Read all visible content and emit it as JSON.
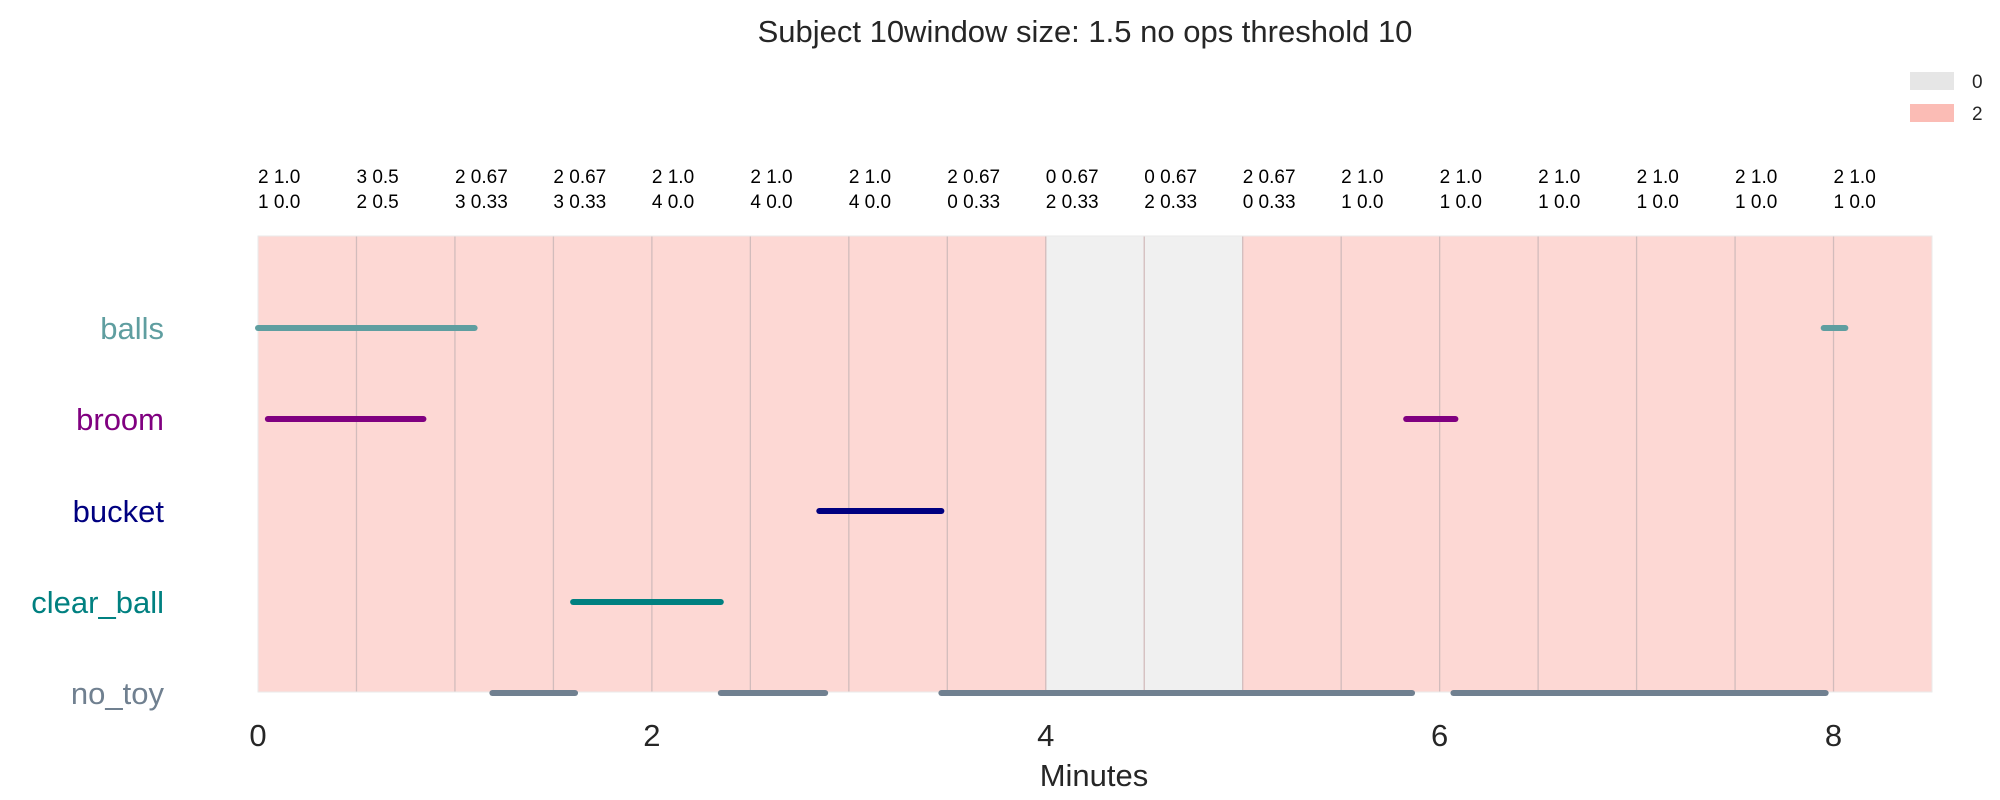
{
  "chart_data": {
    "type": "timeline",
    "title": "Subject 10window size: 1.5 no ops threshold 10",
    "xlabel": "Minutes",
    "xlim": [
      0,
      8.5
    ],
    "xticks": [
      0,
      2,
      4,
      6,
      8
    ],
    "grid": false,
    "legend": {
      "placement": "top-right",
      "entries": [
        {
          "label": "0",
          "color": "#e6e6e6"
        },
        {
          "label": "2",
          "color": "#fbbcb5"
        }
      ]
    },
    "windows": [
      {
        "start": 0.0,
        "end": 0.5,
        "state": "2",
        "label": [
          "2 1.0",
          "1 0.0"
        ]
      },
      {
        "start": 0.5,
        "end": 1.0,
        "state": "2",
        "label": [
          "3 0.5",
          "2 0.5"
        ]
      },
      {
        "start": 1.0,
        "end": 1.5,
        "state": "2",
        "label": [
          "2 0.67",
          "3 0.33"
        ]
      },
      {
        "start": 1.5,
        "end": 2.0,
        "state": "2",
        "label": [
          "2 0.67",
          "3 0.33"
        ]
      },
      {
        "start": 2.0,
        "end": 2.5,
        "state": "2",
        "label": [
          "2 1.0",
          "4 0.0"
        ]
      },
      {
        "start": 2.5,
        "end": 3.0,
        "state": "2",
        "label": [
          "2 1.0",
          "4 0.0"
        ]
      },
      {
        "start": 3.0,
        "end": 3.5,
        "state": "2",
        "label": [
          "2 1.0",
          "4 0.0"
        ]
      },
      {
        "start": 3.5,
        "end": 4.0,
        "state": "2",
        "label": [
          "2 0.67",
          "0 0.33"
        ]
      },
      {
        "start": 4.0,
        "end": 4.5,
        "state": "0",
        "label": [
          "0 0.67",
          "2 0.33"
        ]
      },
      {
        "start": 4.5,
        "end": 5.0,
        "state": "0",
        "label": [
          "0 0.67",
          "2 0.33"
        ]
      },
      {
        "start": 5.0,
        "end": 5.5,
        "state": "2",
        "label": [
          "2 0.67",
          "0 0.33"
        ]
      },
      {
        "start": 5.5,
        "end": 6.0,
        "state": "2",
        "label": [
          "2 1.0",
          "1 0.0"
        ]
      },
      {
        "start": 6.0,
        "end": 6.5,
        "state": "2",
        "label": [
          "2 1.0",
          "1 0.0"
        ]
      },
      {
        "start": 6.5,
        "end": 7.0,
        "state": "2",
        "label": [
          "2 1.0",
          "1 0.0"
        ]
      },
      {
        "start": 7.0,
        "end": 7.5,
        "state": "2",
        "label": [
          "2 1.0",
          "1 0.0"
        ]
      },
      {
        "start": 7.5,
        "end": 8.0,
        "state": "2",
        "label": [
          "2 1.0",
          "1 0.0"
        ]
      },
      {
        "start": 8.0,
        "end": 8.5,
        "state": "2",
        "label": [
          "2 1.0",
          "1 0.0"
        ]
      }
    ],
    "series": [
      {
        "name": "balls",
        "color": "#5f9ea0",
        "segments": [
          [
            0.0,
            1.1
          ],
          [
            7.95,
            8.06
          ]
        ]
      },
      {
        "name": "broom",
        "color": "#800080",
        "segments": [
          [
            0.05,
            0.84
          ],
          [
            5.83,
            6.08
          ]
        ]
      },
      {
        "name": "bucket",
        "color": "#000080",
        "segments": [
          [
            2.85,
            3.47
          ]
        ]
      },
      {
        "name": "clear_ball",
        "color": "#008080",
        "segments": [
          [
            1.6,
            2.35
          ]
        ]
      },
      {
        "name": "no_toy",
        "color": "#708090",
        "segments": [
          [
            1.19,
            1.61
          ],
          [
            2.35,
            2.88
          ],
          [
            3.47,
            5.86
          ],
          [
            6.07,
            7.96
          ]
        ]
      }
    ]
  }
}
